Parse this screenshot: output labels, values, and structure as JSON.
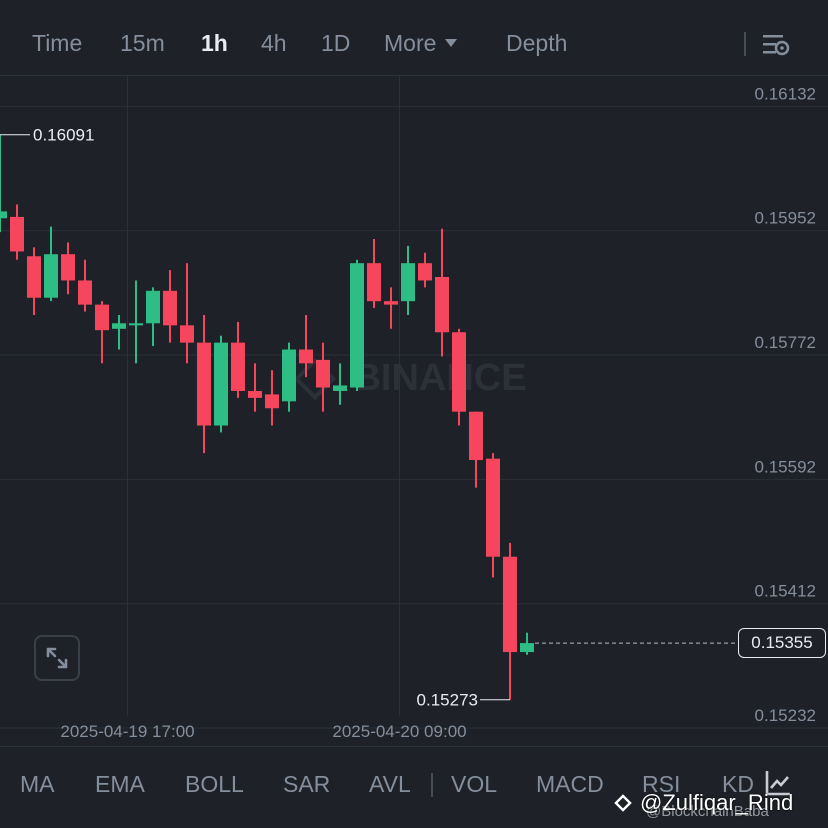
{
  "toolbar": {
    "time_label": "Time",
    "intervals": [
      "15m",
      "1h",
      "4h",
      "1D"
    ],
    "active_interval": "1h",
    "more_label": "More",
    "depth_label": "Depth",
    "settings_icon": "settings-sliders-icon"
  },
  "chart_data": {
    "type": "candlestick",
    "y_ticks": [
      "0.16132",
      "0.15952",
      "0.15772",
      "0.15592",
      "0.15412",
      "0.15232"
    ],
    "ylim": [
      0.15206,
      0.16176
    ],
    "x_ticks": [
      {
        "label": "2025-04-19 17:00",
        "index": 7.5
      },
      {
        "label": "2025-04-20 09:00",
        "index": 23.5
      }
    ],
    "high_marker": {
      "label": "0.16091",
      "value": 0.16091,
      "index": 0
    },
    "low_marker": {
      "label": "0.15273",
      "value": 0.15273,
      "index": 30
    },
    "current_price": {
      "label": "0.15355",
      "value": 0.15355
    },
    "up_color": "#2ebd85",
    "down_color": "#f6465d",
    "candles": [
      {
        "o": 0.1597,
        "h": 0.16091,
        "l": 0.1595,
        "c": 0.1598
      },
      {
        "o": 0.15972,
        "h": 0.1599,
        "l": 0.1591,
        "c": 0.15922
      },
      {
        "o": 0.15915,
        "h": 0.15928,
        "l": 0.1583,
        "c": 0.15855
      },
      {
        "o": 0.15855,
        "h": 0.15958,
        "l": 0.1585,
        "c": 0.15918
      },
      {
        "o": 0.15918,
        "h": 0.15935,
        "l": 0.1586,
        "c": 0.1588
      },
      {
        "o": 0.1588,
        "h": 0.1591,
        "l": 0.15835,
        "c": 0.15845
      },
      {
        "o": 0.15845,
        "h": 0.1585,
        "l": 0.1576,
        "c": 0.15808
      },
      {
        "o": 0.1581,
        "h": 0.1583,
        "l": 0.1578,
        "c": 0.15818
      },
      {
        "o": 0.15815,
        "h": 0.1588,
        "l": 0.1576,
        "c": 0.15818
      },
      {
        "o": 0.15818,
        "h": 0.1587,
        "l": 0.15785,
        "c": 0.15865
      },
      {
        "o": 0.15865,
        "h": 0.15895,
        "l": 0.1579,
        "c": 0.15815
      },
      {
        "o": 0.15815,
        "h": 0.15905,
        "l": 0.1576,
        "c": 0.1579
      },
      {
        "o": 0.1579,
        "h": 0.1583,
        "l": 0.1563,
        "c": 0.1567
      },
      {
        "o": 0.1567,
        "h": 0.158,
        "l": 0.1566,
        "c": 0.1579
      },
      {
        "o": 0.1579,
        "h": 0.1582,
        "l": 0.1571,
        "c": 0.1572
      },
      {
        "o": 0.1572,
        "h": 0.1576,
        "l": 0.1569,
        "c": 0.1571
      },
      {
        "o": 0.15715,
        "h": 0.1575,
        "l": 0.1567,
        "c": 0.15695
      },
      {
        "o": 0.15705,
        "h": 0.1579,
        "l": 0.1569,
        "c": 0.1578
      },
      {
        "o": 0.1578,
        "h": 0.1583,
        "l": 0.1574,
        "c": 0.1576
      },
      {
        "o": 0.15765,
        "h": 0.1579,
        "l": 0.1569,
        "c": 0.15725
      },
      {
        "o": 0.1572,
        "h": 0.1576,
        "l": 0.157,
        "c": 0.15728
      },
      {
        "o": 0.15725,
        "h": 0.1591,
        "l": 0.1572,
        "c": 0.15905
      },
      {
        "o": 0.15905,
        "h": 0.1594,
        "l": 0.1584,
        "c": 0.1585
      },
      {
        "o": 0.1585,
        "h": 0.1587,
        "l": 0.1581,
        "c": 0.15845
      },
      {
        "o": 0.1585,
        "h": 0.1593,
        "l": 0.1583,
        "c": 0.15905
      },
      {
        "o": 0.15905,
        "h": 0.1592,
        "l": 0.1587,
        "c": 0.1588
      },
      {
        "o": 0.15885,
        "h": 0.15955,
        "l": 0.1577,
        "c": 0.15805
      },
      {
        "o": 0.15805,
        "h": 0.1581,
        "l": 0.1567,
        "c": 0.1569
      },
      {
        "o": 0.1569,
        "h": 0.1569,
        "l": 0.1558,
        "c": 0.1562
      },
      {
        "o": 0.15622,
        "h": 0.1563,
        "l": 0.1545,
        "c": 0.1548
      },
      {
        "o": 0.1548,
        "h": 0.155,
        "l": 0.15273,
        "c": 0.15342
      },
      {
        "o": 0.15342,
        "h": 0.1537,
        "l": 0.15338,
        "c": 0.15355
      }
    ]
  },
  "watermark": {
    "text": "BINANCE"
  },
  "expand_icon": "expand-arrows-icon",
  "indicators": [
    "MA",
    "EMA",
    "BOLL",
    "SAR",
    "AVL",
    "VOL",
    "MACD",
    "RSI",
    "KD"
  ],
  "indicator_icon": "chart-settings-icon",
  "overlay": {
    "text": "@Zulfiqar_Rind",
    "subtext": "@BlockchainBaba"
  }
}
